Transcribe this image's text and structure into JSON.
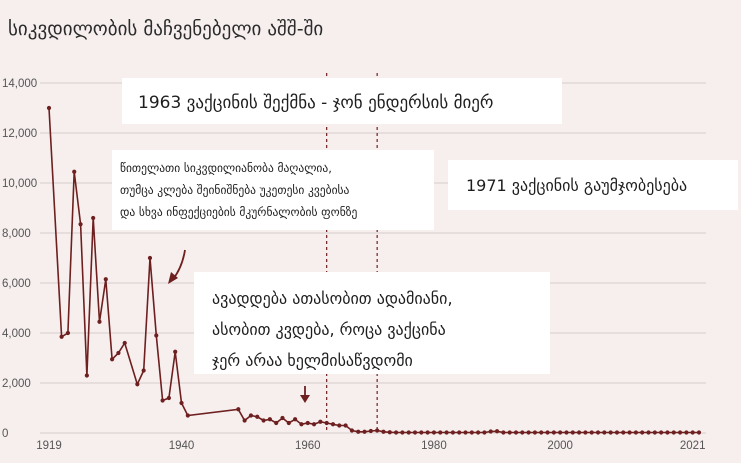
{
  "chart_data": {
    "type": "line",
    "title": "სიკვდილობის მაჩვენებელი აშშ-ში",
    "xlabel": "",
    "ylabel": "",
    "xlim": [
      1919,
      2022
    ],
    "ylim": [
      0,
      14000
    ],
    "y_ticks": [
      0,
      2000,
      4000,
      6000,
      8000,
      10000,
      12000,
      14000
    ],
    "y_tick_labels": [
      "0",
      "2,000",
      "4,000",
      "6,000",
      "8,000",
      "10,000",
      "12,000",
      "14,000"
    ],
    "x_ticks": [
      1919,
      1940,
      1960,
      1980,
      2000,
      2021
    ],
    "x_tick_labels": [
      "1919",
      "1940",
      "1960",
      "1980",
      "2000",
      "2021"
    ],
    "grid": true,
    "series": [
      {
        "color": "#6e1f1f",
        "x": [
          1919,
          1921,
          1922,
          1923,
          1924,
          1925,
          1926,
          1927,
          1928,
          1929,
          1930,
          1931,
          1933,
          1934,
          1935,
          1936,
          1937,
          1938,
          1939,
          1940,
          1941,
          1949,
          1950,
          1951,
          1952,
          1953,
          1954,
          1955,
          1956,
          1957,
          1958,
          1959,
          1960,
          1961,
          1962,
          1963,
          1964,
          1965,
          1966,
          1967,
          1968,
          1969,
          1970,
          1971,
          1972,
          1973,
          1974,
          1975,
          1976,
          1977,
          1978,
          1979,
          1980,
          1981,
          1982,
          1983,
          1984,
          1985,
          1986,
          1987,
          1988,
          1989,
          1990,
          1991,
          1992,
          1993,
          1994,
          1995,
          1996,
          1997,
          1998,
          1999,
          2000,
          2001,
          2002,
          2003,
          2004,
          2005,
          2006,
          2007,
          2008,
          2009,
          2010,
          2011,
          2012,
          2013,
          2014,
          2015,
          2016,
          2017,
          2018,
          2019,
          2020,
          2021,
          2022
        ],
        "y": [
          13000,
          3850,
          4000,
          10450,
          8350,
          2300,
          8600,
          4450,
          6150,
          2950,
          3200,
          3600,
          1950,
          2500,
          7000,
          3900,
          1300,
          1400,
          3250,
          1200,
          700,
          950,
          500,
          700,
          650,
          500,
          550,
          400,
          600,
          400,
          550,
          350,
          400,
          350,
          450,
          400,
          350,
          300,
          300,
          100,
          50,
          50,
          80,
          100,
          50,
          30,
          20,
          20,
          20,
          20,
          20,
          20,
          20,
          20,
          20,
          20,
          20,
          20,
          20,
          20,
          20,
          60,
          70,
          20,
          20,
          20,
          20,
          20,
          20,
          20,
          20,
          20,
          20,
          20,
          20,
          20,
          20,
          20,
          20,
          20,
          20,
          20,
          20,
          20,
          20,
          20,
          20,
          20,
          20,
          20,
          20,
          20,
          20,
          20,
          20
        ]
      }
    ],
    "annotations": [
      {
        "id": "a1963",
        "lines": [
          "1963 ვაქცინის შექმნა - ჯონ ენდერსის მიერ"
        ],
        "x": 1963
      },
      {
        "id": "a1971",
        "lines": [
          "1971 ვაქცინის გაუმჯობესება"
        ],
        "x": 1971
      },
      {
        "id": "anote",
        "lines": [
          "წითელათი სიკვდილიანობა მაღალია,",
          "თუმცა კლება შეინიშნება უკეთესი კვებისა",
          "და სხვა ინფექციების მკურნალობის ფონზე"
        ]
      },
      {
        "id": "asick",
        "lines": [
          "ავადდება ათასობით ადამიანი,",
          "ასობით კვდება, როცა ვაქცინა",
          "ჯერ არაა ხელმისაწვდომი"
        ]
      }
    ]
  }
}
